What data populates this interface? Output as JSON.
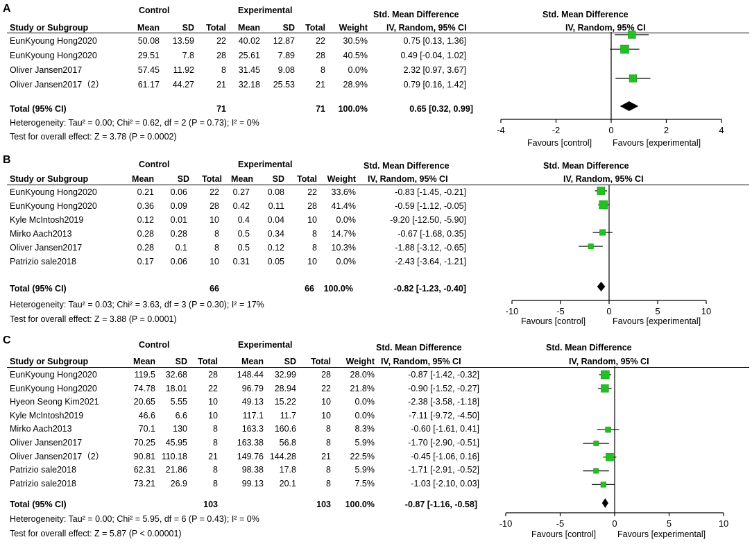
{
  "columns": {
    "study": "Study or Subgroup",
    "mean": "Mean",
    "sd": "SD",
    "total": "Total",
    "weight": "Weight",
    "smd_header": "Std. Mean Difference",
    "smd_sub": "IV, Random, 95% CI",
    "group_control": "Control",
    "group_experimental": "Experimental"
  },
  "panels": [
    {
      "label": "A",
      "rows": [
        {
          "study": "EunKyoung Hong2020",
          "c_mean": "50.08",
          "c_sd": "13.59",
          "c_total": "22",
          "e_mean": "40.02",
          "e_sd": "12.87",
          "e_total": "22",
          "weight": "30.5%",
          "ci_text": "0.75 [0.13, 1.36]"
        },
        {
          "study": "EunKyoung Hong2020",
          "c_mean": "29.51",
          "c_sd": "7.8",
          "c_total": "28",
          "e_mean": "25.61",
          "e_sd": "7.89",
          "e_total": "28",
          "weight": "40.5%",
          "ci_text": "0.49 [-0.04, 1.02]"
        },
        {
          "study": "Oliver Jansen2017",
          "c_mean": "57.45",
          "c_sd": "11.92",
          "c_total": "8",
          "e_mean": "31.45",
          "e_sd": "9.08",
          "e_total": "8",
          "weight": "0.0%",
          "ci_text": "2.32 [0.97, 3.67]"
        },
        {
          "study": "Oliver Jansen2017（2）",
          "c_mean": "61.17",
          "c_sd": "44.27",
          "c_total": "21",
          "e_mean": "32.18",
          "e_sd": "25.53",
          "e_total": "21",
          "weight": "28.9%",
          "ci_text": "0.79 [0.16, 1.42]"
        }
      ],
      "total": {
        "label": "Total (95% CI)",
        "c_total": "71",
        "e_total": "71",
        "weight": "100.0%",
        "ci_text": "0.65 [0.32, 0.99]"
      },
      "heterogeneity": "Heterogeneity: Tau² = 0.00; Chi² = 0.62, df = 2 (P = 0.73); I² = 0%",
      "overall": "Test for overall effect: Z = 3.78 (P = 0.0002)",
      "favours_left": "Favours [control]",
      "favours_right": "Favours [experimental]"
    },
    {
      "label": "B",
      "rows": [
        {
          "study": "EunKyoung Hong2020",
          "c_mean": "0.21",
          "c_sd": "0.06",
          "c_total": "22",
          "e_mean": "0.27",
          "e_sd": "0.08",
          "e_total": "22",
          "weight": "33.6%",
          "ci_text": "-0.83 [-1.45, -0.21]"
        },
        {
          "study": "EunKyoung Hong2020",
          "c_mean": "0.36",
          "c_sd": "0.09",
          "c_total": "28",
          "e_mean": "0.42",
          "e_sd": "0.11",
          "e_total": "28",
          "weight": "41.4%",
          "ci_text": "-0.59 [-1.12, -0.05]"
        },
        {
          "study": "Kyle McIntosh2019",
          "c_mean": "0.12",
          "c_sd": "0.01",
          "c_total": "10",
          "e_mean": "0.4",
          "e_sd": "0.04",
          "e_total": "10",
          "weight": "0.0%",
          "ci_text": "-9.20 [-12.50, -5.90]"
        },
        {
          "study": "Mirko Aach2013",
          "c_mean": "0.28",
          "c_sd": "0.28",
          "c_total": "8",
          "e_mean": "0.5",
          "e_sd": "0.34",
          "e_total": "8",
          "weight": "14.7%",
          "ci_text": "-0.67 [-1.68, 0.35]"
        },
        {
          "study": "Oliver Jansen2017",
          "c_mean": "0.28",
          "c_sd": "0.1",
          "c_total": "8",
          "e_mean": "0.5",
          "e_sd": "0.12",
          "e_total": "8",
          "weight": "10.3%",
          "ci_text": "-1.88 [-3.12, -0.65]"
        },
        {
          "study": "Patrizio sale2018",
          "c_mean": "0.17",
          "c_sd": "0.06",
          "c_total": "10",
          "e_mean": "0.31",
          "e_sd": "0.05",
          "e_total": "10",
          "weight": "0.0%",
          "ci_text": "-2.43 [-3.64, -1.21]"
        }
      ],
      "total": {
        "label": "Total (95% CI)",
        "c_total": "66",
        "e_total": "66",
        "weight": "100.0%",
        "ci_text": "-0.82 [-1.23, -0.40]"
      },
      "heterogeneity": "Heterogeneity: Tau² = 0.03; Chi² = 3.63, df = 3 (P = 0.30); I² = 17%",
      "overall": "Test for overall effect: Z = 3.88 (P = 0.0001)",
      "favours_left": "Favours [control]",
      "favours_right": "Favours [experimental]"
    },
    {
      "label": "C",
      "rows": [
        {
          "study": "EunKyoung Hong2020",
          "c_mean": "119.5",
          "c_sd": "32.68",
          "c_total": "28",
          "e_mean": "148.44",
          "e_sd": "32.99",
          "e_total": "28",
          "weight": "28.0%",
          "ci_text": "-0.87 [-1.42, -0.32]"
        },
        {
          "study": "EunKyoung Hong2020",
          "c_mean": "74.78",
          "c_sd": "18.01",
          "c_total": "22",
          "e_mean": "96.79",
          "e_sd": "28.94",
          "e_total": "22",
          "weight": "21.8%",
          "ci_text": "-0.90 [-1.52, -0.27]"
        },
        {
          "study": "Hyeon Seong Kim2021",
          "c_mean": "20.65",
          "c_sd": "5.55",
          "c_total": "10",
          "e_mean": "49.13",
          "e_sd": "15.22",
          "e_total": "10",
          "weight": "0.0%",
          "ci_text": "-2.38 [-3.58, -1.18]"
        },
        {
          "study": "Kyle McIntosh2019",
          "c_mean": "46.6",
          "c_sd": "6.6",
          "c_total": "10",
          "e_mean": "117.1",
          "e_sd": "11.7",
          "e_total": "10",
          "weight": "0.0%",
          "ci_text": "-7.11 [-9.72, -4.50]"
        },
        {
          "study": "Mirko Aach2013",
          "c_mean": "70.1",
          "c_sd": "130",
          "c_total": "8",
          "e_mean": "163.3",
          "e_sd": "160.6",
          "e_total": "8",
          "weight": "8.3%",
          "ci_text": "-0.60 [-1.61, 0.41]"
        },
        {
          "study": "Oliver Jansen2017",
          "c_mean": "70.25",
          "c_sd": "45.95",
          "c_total": "8",
          "e_mean": "163.38",
          "e_sd": "56.8",
          "e_total": "8",
          "weight": "5.9%",
          "ci_text": "-1.70 [-2.90, -0.51]"
        },
        {
          "study": "Oliver Jansen2017（2）",
          "c_mean": "90.81",
          "c_sd": "110.18",
          "c_total": "21",
          "e_mean": "149.76",
          "e_sd": "144.28",
          "e_total": "21",
          "weight": "22.5%",
          "ci_text": "-0.45 [-1.06, 0.16]"
        },
        {
          "study": "Patrizio sale2018",
          "c_mean": "62.31",
          "c_sd": "21.86",
          "c_total": "8",
          "e_mean": "98.38",
          "e_sd": "17.8",
          "e_total": "8",
          "weight": "5.9%",
          "ci_text": "-1.71 [-2.91, -0.52]"
        },
        {
          "study": "Patrizio sale2018",
          "c_mean": "73.21",
          "c_sd": "26.9",
          "c_total": "8",
          "e_mean": "99.13",
          "e_sd": "20.1",
          "e_total": "8",
          "weight": "7.5%",
          "ci_text": "-1.03 [-2.10, 0.03]"
        }
      ],
      "total": {
        "label": "Total (95% CI)",
        "c_total": "103",
        "e_total": "103",
        "weight": "100.0%",
        "ci_text": "-0.87 [-1.16, -0.58]"
      },
      "heterogeneity": "Heterogeneity: Tau² = 0.00; Chi² = 5.95, df = 6 (P = 0.43); I² = 0%",
      "overall": "Test for overall effect: Z = 5.87 (P < 0.00001)",
      "favours_left": "Favours [control]",
      "favours_right": "Favours [experimental]"
    }
  ],
  "chart_data": [
    {
      "type": "scatter",
      "subtype": "forest",
      "panel": "A",
      "title": "Std. Mean Difference",
      "subtitle": "IV, Random, 95% CI",
      "xlim": [
        -4,
        4
      ],
      "xticks": [
        -4,
        -2,
        0,
        2,
        4
      ],
      "xtick_labels": [
        "-4",
        "-2",
        "0",
        "2",
        "4"
      ],
      "estimates": [
        0.75,
        0.49,
        0.79
      ],
      "ci_low": [
        0.13,
        -0.04,
        0.16
      ],
      "ci_high": [
        1.36,
        1.02,
        1.42
      ],
      "weights": [
        30.5,
        40.5,
        28.9
      ],
      "row_index": [
        0,
        1,
        3
      ],
      "pooled": {
        "estimate": 0.65,
        "low": 0.32,
        "high": 0.99
      }
    },
    {
      "type": "scatter",
      "subtype": "forest",
      "panel": "B",
      "title": "Std. Mean Difference",
      "subtitle": "IV, Random, 95% CI",
      "xlim": [
        -10,
        10
      ],
      "xticks": [
        -10,
        -5,
        0,
        5,
        10
      ],
      "xtick_labels": [
        "-10",
        "-5",
        "0",
        "5",
        "10"
      ],
      "estimates": [
        -0.83,
        -0.59,
        -0.67,
        -1.88
      ],
      "ci_low": [
        -1.45,
        -1.12,
        -1.68,
        -3.12
      ],
      "ci_high": [
        -0.21,
        -0.05,
        0.35,
        -0.65
      ],
      "weights": [
        33.6,
        41.4,
        14.7,
        10.3
      ],
      "row_index": [
        0,
        1,
        3,
        4
      ],
      "pooled": {
        "estimate": -0.82,
        "low": -1.23,
        "high": -0.4
      }
    },
    {
      "type": "scatter",
      "subtype": "forest",
      "panel": "C",
      "title": "Std. Mean Difference",
      "subtitle": "IV, Random, 95% CI",
      "xlim": [
        -10,
        10
      ],
      "xticks": [
        -10,
        -5,
        0,
        5,
        10
      ],
      "xtick_labels": [
        "-10",
        "-5",
        "0",
        "5",
        "10"
      ],
      "estimates": [
        -0.87,
        -0.9,
        -0.6,
        -1.7,
        -0.45,
        -1.71,
        -1.03
      ],
      "ci_low": [
        -1.42,
        -1.52,
        -1.61,
        -2.9,
        -1.06,
        -2.91,
        -2.1
      ],
      "ci_high": [
        -0.32,
        -0.27,
        0.41,
        -0.51,
        0.16,
        -0.52,
        0.03
      ],
      "weights": [
        28.0,
        21.8,
        8.3,
        5.9,
        22.5,
        5.9,
        7.5
      ],
      "row_index": [
        0,
        1,
        4,
        5,
        6,
        7,
        8
      ],
      "pooled": {
        "estimate": -0.87,
        "low": -1.16,
        "high": -0.58
      }
    }
  ],
  "colors": {
    "marker": "#22c022",
    "marker_stroke": "#159a15",
    "line": "#000000",
    "diamond": "#000000"
  }
}
